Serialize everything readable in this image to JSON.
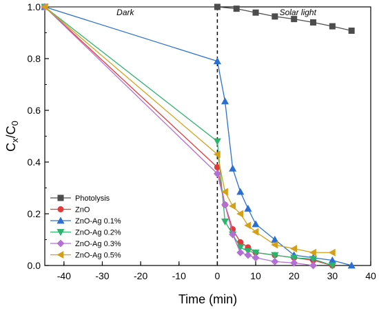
{
  "chart_data": {
    "type": "line",
    "xlabel": "Time (min)",
    "ylabel_main": "C",
    "ylabel_sub1": "x",
    "ylabel_mid": "/C",
    "ylabel_sub2": "0",
    "xlim": [
      -45,
      40
    ],
    "ylim": [
      0.0,
      1.0
    ],
    "xticks": [
      -40,
      -30,
      -20,
      -10,
      0,
      10,
      20,
      30,
      40
    ],
    "yticks": [
      0.0,
      0.2,
      0.4,
      0.6,
      0.8,
      1.0
    ],
    "ytick_labels": [
      "0.0",
      "0.2",
      "0.4",
      "0.6",
      "0.8",
      "1.0"
    ],
    "regions": [
      {
        "label": "Dark",
        "x_center": -24
      },
      {
        "label": "Solar light",
        "x_center": 21
      }
    ],
    "divider_x": 0,
    "legend_position": "bottom-left",
    "series": [
      {
        "name": "Photolysis",
        "color": "#4d4d4d",
        "marker": "square",
        "x": [
          -45,
          0,
          5,
          10,
          15,
          20,
          25,
          30,
          35
        ],
        "y": [
          1.0,
          1.0,
          0.993,
          0.978,
          0.963,
          0.953,
          0.94,
          0.925,
          0.908
        ]
      },
      {
        "name": "ZnO",
        "color": "#e23a3a",
        "marker": "circle",
        "x": [
          -45,
          0,
          2,
          4,
          6,
          8,
          10,
          15,
          20,
          25,
          30
        ],
        "y": [
          1.0,
          0.38,
          0.235,
          0.14,
          0.09,
          0.07,
          0.05,
          0.04,
          0.03,
          0.02,
          0.0
        ]
      },
      {
        "name": "ZnO-Ag 0.1%",
        "color": "#2a6fd1",
        "marker": "triangle-up",
        "x": [
          -45,
          0,
          2,
          4,
          6,
          8,
          10,
          15,
          20,
          25,
          30,
          35
        ],
        "y": [
          1.0,
          0.79,
          0.635,
          0.375,
          0.285,
          0.22,
          0.16,
          0.1,
          0.04,
          0.03,
          0.02,
          0.0
        ]
      },
      {
        "name": "ZnO-Ag 0.2%",
        "color": "#2db36b",
        "marker": "triangle-down",
        "x": [
          -45,
          0,
          2,
          4,
          6,
          8,
          10,
          15,
          20,
          25,
          30
        ],
        "y": [
          1.0,
          0.48,
          0.17,
          0.12,
          0.07,
          0.055,
          0.05,
          0.04,
          0.03,
          0.025,
          0.0
        ]
      },
      {
        "name": "ZnO-Ag 0.3%",
        "color": "#b36fd4",
        "marker": "diamond",
        "x": [
          -45,
          0,
          2,
          4,
          6,
          8,
          10,
          15,
          20,
          25
        ],
        "y": [
          1.0,
          0.355,
          0.235,
          0.12,
          0.05,
          0.04,
          0.03,
          0.015,
          0.01,
          0.0
        ]
      },
      {
        "name": "ZnO-Ag 0.5%",
        "color": "#d4a017",
        "marker": "triangle-left",
        "x": [
          -45,
          0,
          2,
          4,
          6,
          8,
          10,
          15,
          20,
          25,
          30
        ],
        "y": [
          1.0,
          0.43,
          0.285,
          0.23,
          0.2,
          0.155,
          0.13,
          0.08,
          0.065,
          0.05,
          0.05
        ]
      }
    ]
  }
}
